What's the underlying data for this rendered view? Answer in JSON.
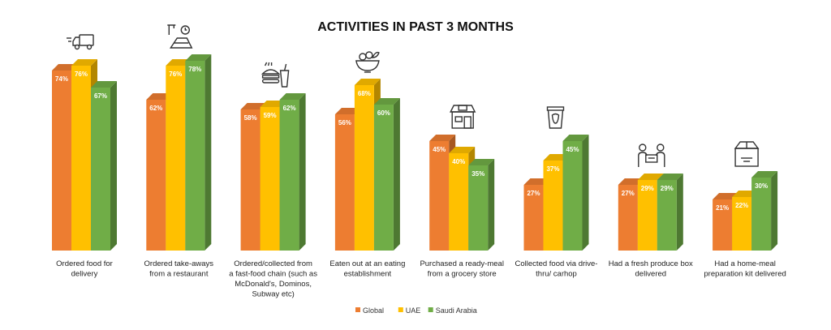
{
  "chart_data": {
    "type": "bar",
    "title": "ACTIVITIES IN PAST 3 MONTHS",
    "categories": [
      "Ordered food for delivery",
      "Ordered take-aways from a restaurant",
      "Ordered/collected from a fast-food chain (such as McDonald's, Dominos, Subway etc)",
      "Eaten out at an eating establishment",
      "Purchased a ready-meal from a grocery store",
      "Collected food via drive-thru/ carhop",
      "Had a fresh produce box delivered",
      "Had a home-meal preparation kit delivered"
    ],
    "category_lines": [
      [
        "Ordered food for",
        "delivery"
      ],
      [
        "Ordered take-aways",
        "from a restaurant"
      ],
      [
        "Ordered/collected from",
        "a fast-food chain (such as",
        "McDonald's, Dominos,",
        "Subway etc)"
      ],
      [
        "Eaten out at an eating",
        "establishment"
      ],
      [
        "Purchased a ready-meal",
        "from a grocery store"
      ],
      [
        "Collected food via drive-",
        "thru/ carhop"
      ],
      [
        "Had a fresh produce box",
        "delivered"
      ],
      [
        "Had a home-meal",
        "preparation kit delivered"
      ]
    ],
    "series": [
      {
        "name": "Global",
        "color": "#ED7D31",
        "values": [
          74,
          62,
          58,
          56,
          45,
          27,
          27,
          21
        ]
      },
      {
        "name": "UAE",
        "color": "#FFC000",
        "values": [
          76,
          76,
          59,
          68,
          40,
          37,
          29,
          22
        ]
      },
      {
        "name": "Saudi Arabia",
        "color": "#70AD47",
        "values": [
          67,
          78,
          62,
          60,
          35,
          45,
          29,
          30
        ]
      }
    ],
    "value_suffix": "%",
    "ylim": [
      0,
      100
    ],
    "grid": false,
    "legend_position": "bottom",
    "icons": [
      "delivery-truck-icon",
      "takeaway-icon",
      "fast-food-icon",
      "dining-bowl-icon",
      "grocery-store-icon",
      "drive-thru-icon",
      "produce-box-delivery-icon",
      "meal-kit-box-icon"
    ]
  }
}
